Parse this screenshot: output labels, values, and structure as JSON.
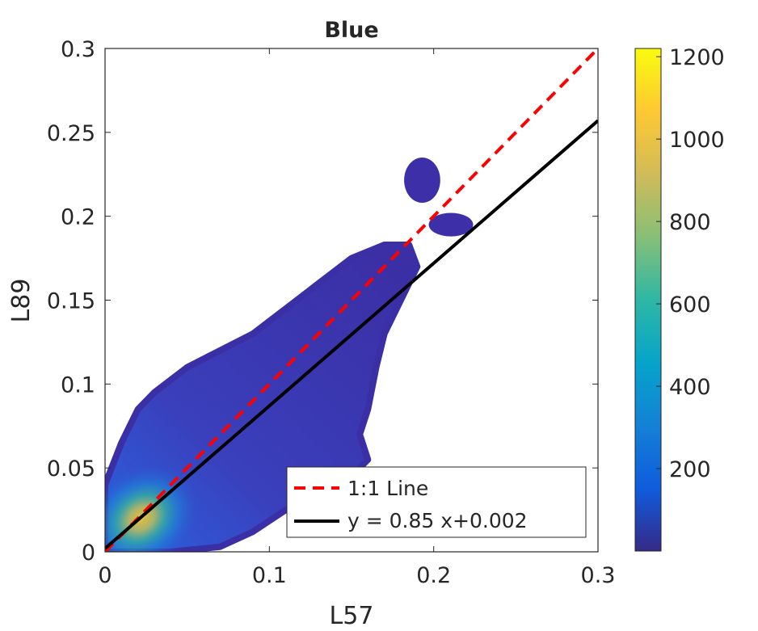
{
  "chart_data": {
    "type": "scatter",
    "title": "Blue",
    "xlabel": "L57",
    "ylabel": "L89",
    "xlim": [
      0,
      0.3
    ],
    "ylim": [
      0,
      0.3
    ],
    "x_ticks": [
      0,
      0.1,
      0.2,
      0.3
    ],
    "x_tick_labels": [
      "0",
      "0.1",
      "0.2",
      "0.3"
    ],
    "y_ticks": [
      0,
      0.05,
      0.1,
      0.15,
      0.2,
      0.25,
      0.3
    ],
    "y_tick_labels": [
      "0",
      "0.05",
      "0.1",
      "0.15",
      "0.2",
      "0.25",
      "0.3"
    ],
    "grid": false,
    "density_colored": true,
    "point_cloud_outline": [
      [
        0.0,
        0.0
      ],
      [
        0.0,
        0.04
      ],
      [
        0.01,
        0.065
      ],
      [
        0.02,
        0.085
      ],
      [
        0.03,
        0.095
      ],
      [
        0.05,
        0.11
      ],
      [
        0.07,
        0.12
      ],
      [
        0.09,
        0.13
      ],
      [
        0.11,
        0.145
      ],
      [
        0.13,
        0.16
      ],
      [
        0.15,
        0.175
      ],
      [
        0.17,
        0.183
      ],
      [
        0.185,
        0.183
      ],
      [
        0.19,
        0.17
      ],
      [
        0.18,
        0.15
      ],
      [
        0.17,
        0.13
      ],
      [
        0.165,
        0.11
      ],
      [
        0.16,
        0.085
      ],
      [
        0.155,
        0.07
      ],
      [
        0.16,
        0.055
      ],
      [
        0.15,
        0.045
      ],
      [
        0.13,
        0.035
      ],
      [
        0.11,
        0.025
      ],
      [
        0.09,
        0.012
      ],
      [
        0.07,
        0.003
      ],
      [
        0.04,
        0.0
      ]
    ],
    "outlier_clusters": [
      {
        "x_range": [
          0.182,
          0.204
        ],
        "y_range": [
          0.208,
          0.235
        ]
      },
      {
        "x_range": [
          0.197,
          0.224
        ],
        "y_range": [
          0.188,
          0.202
        ]
      }
    ],
    "density_peak": [
      0.022,
      0.02
    ],
    "lines": [
      {
        "name": "1:1 Line",
        "slope": 1.0,
        "intercept": 0.0,
        "color": "#ff0000",
        "style": "dashed"
      },
      {
        "name": "y = 0.85 x+0.002",
        "slope": 0.85,
        "intercept": 0.002,
        "color": "#000000",
        "style": "solid"
      }
    ],
    "legend": {
      "placement": "bottom-right",
      "entries": [
        "1:1 Line",
        "y = 0.85 x+0.002"
      ]
    },
    "colorbar": {
      "min": 0,
      "max": 1220,
      "ticks": [
        200,
        400,
        600,
        800,
        1000,
        1200
      ],
      "tick_labels": [
        "200",
        "400",
        "600",
        "800",
        "1000",
        "1200"
      ],
      "colormap": "parula",
      "colormap_stops": [
        "#352a87",
        "#0f5cdd",
        "#1481d6",
        "#06a4ca",
        "#2eb7a4",
        "#87bf77",
        "#d1bb59",
        "#fec832",
        "#f9fb0e"
      ]
    }
  }
}
